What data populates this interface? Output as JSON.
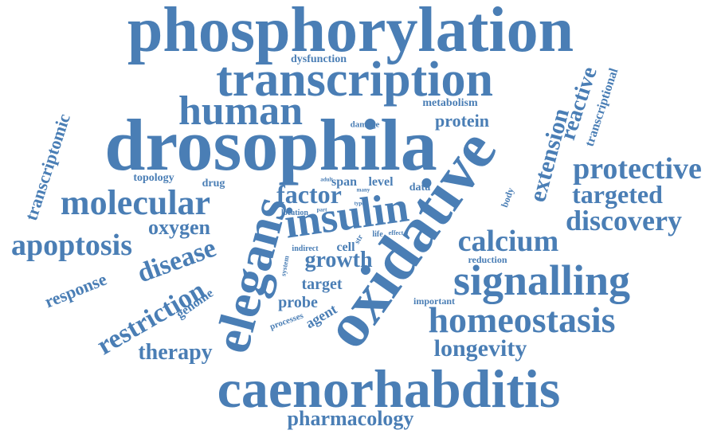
{
  "word_cloud": {
    "color": "#4a7eb5",
    "words": [
      {
        "text": "phosphorylation"
      },
      {
        "text": "transcription"
      },
      {
        "text": "drosophila"
      },
      {
        "text": "human"
      },
      {
        "text": "caenorhabditis"
      },
      {
        "text": "oxidative"
      },
      {
        "text": "elegans"
      },
      {
        "text": "insulin"
      },
      {
        "text": "signalling"
      },
      {
        "text": "homeostasis"
      },
      {
        "text": "molecular"
      },
      {
        "text": "protective"
      },
      {
        "text": "extension"
      },
      {
        "text": "reactive"
      },
      {
        "text": "transcriptional"
      },
      {
        "text": "transcriptomic"
      },
      {
        "text": "apoptosis"
      },
      {
        "text": "calcium"
      },
      {
        "text": "discovery"
      },
      {
        "text": "targeted"
      },
      {
        "text": "factor"
      },
      {
        "text": "oxygen"
      },
      {
        "text": "disease"
      },
      {
        "text": "restriction"
      },
      {
        "text": "response"
      },
      {
        "text": "growth"
      },
      {
        "text": "longevity"
      },
      {
        "text": "therapy"
      },
      {
        "text": "pharmacology"
      },
      {
        "text": "protein"
      },
      {
        "text": "metabolism"
      },
      {
        "text": "dysfunction"
      },
      {
        "text": "damage"
      },
      {
        "text": "topology"
      },
      {
        "text": "drug"
      },
      {
        "text": "span"
      },
      {
        "text": "level"
      },
      {
        "text": "data"
      },
      {
        "text": "target"
      },
      {
        "text": "probe"
      },
      {
        "text": "agent"
      },
      {
        "text": "processes"
      },
      {
        "text": "genome"
      },
      {
        "text": "cell"
      },
      {
        "text": "location"
      },
      {
        "text": "indirect"
      },
      {
        "text": "system"
      },
      {
        "text": "str"
      },
      {
        "text": "life"
      },
      {
        "text": "effect"
      },
      {
        "text": "reduction"
      },
      {
        "text": "important"
      },
      {
        "text": "body"
      },
      {
        "text": "adult"
      },
      {
        "text": "many"
      },
      {
        "text": "part"
      },
      {
        "text": "type"
      }
    ]
  }
}
